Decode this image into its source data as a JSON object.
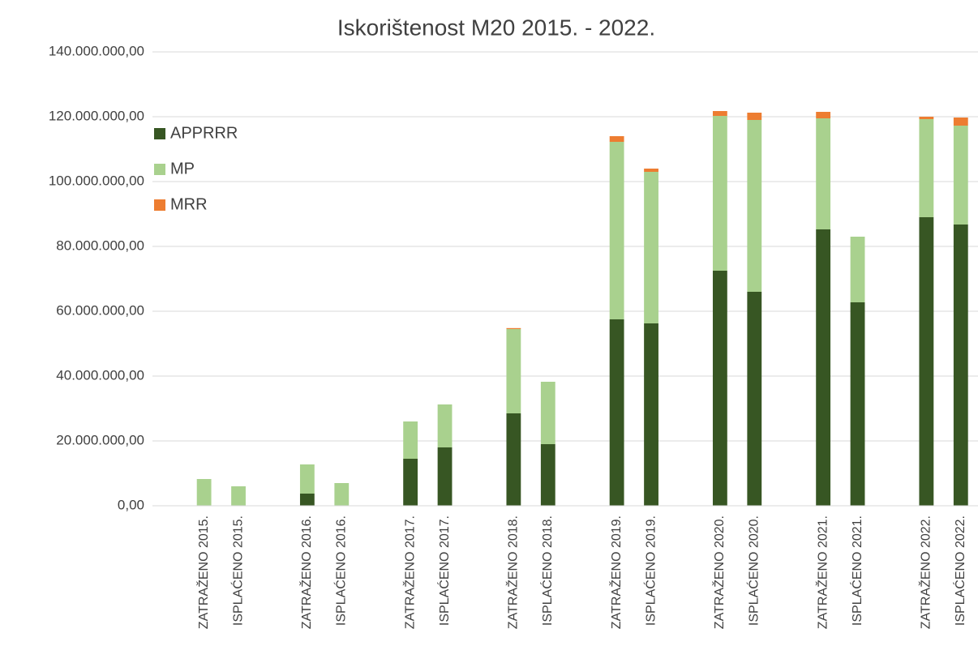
{
  "chart_data": {
    "type": "stacked_bar",
    "title": "Iskorištenost M20 2015. - 2022.",
    "categories": [
      null,
      "ZATRAŽENO 2015.",
      "ISPLAĆENO 2015.",
      null,
      "ZATRAŽENO 2016.",
      "ISPLAĆENO 2016.",
      null,
      "ZATRAŽENO 2017.",
      "ISPLAĆENO 2017.",
      null,
      "ZATRAŽENO 2018.",
      "ISPLAĆENO 2018.",
      null,
      "ZATRAŽENO 2019.",
      "ISPLAĆENO 2019.",
      null,
      "ZATRAŽENO 2020.",
      "ISPLAĆENO 2020.",
      null,
      "ZATRAŽENO 2021.",
      "ISPLAĆENO 2021.",
      null,
      "ZATRAŽENO 2022.",
      "ISPLAĆENO 2022."
    ],
    "series": [
      {
        "name": "APPRRR",
        "color": "#375623",
        "values": [
          null,
          0,
          0,
          null,
          3750000,
          0,
          null,
          14500000,
          18000000,
          null,
          28500000,
          19000000,
          null,
          57500000,
          56250000,
          null,
          72500000,
          66000000,
          null,
          85250000,
          62750000,
          null,
          89000000,
          86750000
        ]
      },
      {
        "name": "MP",
        "color": "#a9d18e",
        "values": [
          null,
          8250000,
          6000000,
          null,
          9000000,
          7000000,
          null,
          11500000,
          13250000,
          null,
          26000000,
          19250000,
          null,
          54750000,
          46750000,
          null,
          47750000,
          53000000,
          null,
          34250000,
          20250000,
          null,
          30250000,
          30500000
        ]
      },
      {
        "name": "MRR",
        "color": "#ed7d31",
        "values": [
          null,
          0,
          0,
          null,
          0,
          0,
          null,
          0,
          0,
          null,
          300000,
          0,
          null,
          1750000,
          1000000,
          null,
          1500000,
          2250000,
          null,
          2000000,
          0,
          null,
          750000,
          2500000
        ]
      }
    ],
    "ylim": [
      0,
      140000000
    ],
    "yticks": [
      {
        "value": 0,
        "label": "0,00"
      },
      {
        "value": 20000000,
        "label": "20.000.000,00"
      },
      {
        "value": 40000000,
        "label": "40.000.000,00"
      },
      {
        "value": 60000000,
        "label": "60.000.000,00"
      },
      {
        "value": 80000000,
        "label": "80.000.000,00"
      },
      {
        "value": 100000000,
        "label": "100.000.000,00"
      },
      {
        "value": 120000000,
        "label": "120.000.000,00"
      },
      {
        "value": 140000000,
        "label": "140.000.000,00"
      }
    ],
    "grid": true,
    "legend": "top-left"
  }
}
